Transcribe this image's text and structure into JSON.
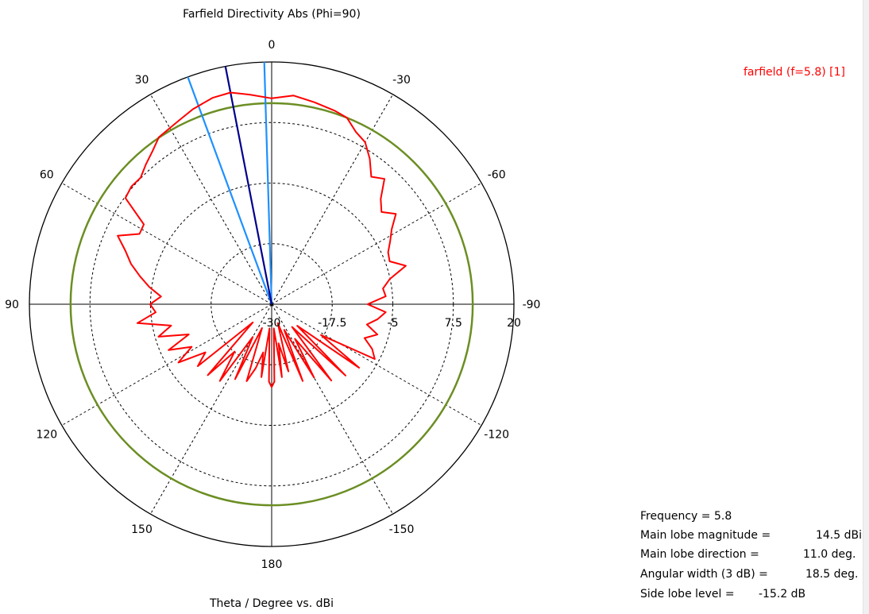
{
  "chart_data": {
    "type": "polar",
    "title": "Farfield Directivity Abs (Phi=90)",
    "xlabel": "Theta / Degree vs. dBi",
    "angle_ticks": [
      "0",
      "-30",
      "-60",
      "-90",
      "-120",
      "-150",
      "180",
      "150",
      "120",
      "90",
      "60",
      "30"
    ],
    "radial_ticks": [
      "-30",
      "-17.5",
      "-5",
      "7.5",
      "20"
    ],
    "radial_range_dbi": [
      -30,
      20
    ],
    "grid": true,
    "legend_position": "top-right",
    "series": [
      {
        "name": "farfield (f=5.8) [1]",
        "color": "#ff0000",
        "theta_deg": [
          0,
          6,
          11,
          16,
          22,
          26,
          30,
          34,
          38,
          42,
          46,
          50,
          54,
          58,
          62,
          66,
          70,
          74,
          78,
          82,
          86,
          90,
          94,
          98,
          102,
          106,
          110,
          114,
          118,
          122,
          126,
          130,
          134,
          138,
          142,
          146,
          150,
          154,
          158,
          162,
          166,
          170,
          172,
          175,
          178,
          180,
          182,
          185,
          188,
          190,
          194,
          198,
          202,
          206,
          210,
          214,
          218,
          222,
          226,
          230,
          234,
          238,
          242,
          246,
          250,
          254,
          258,
          262,
          266,
          270,
          274,
          278,
          282,
          286,
          290,
          294,
          298,
          302,
          306,
          310,
          314,
          318,
          322,
          326,
          330,
          334,
          338,
          342,
          348,
          354,
          360
        ],
        "dbi": [
          12.5,
          13.5,
          14.5,
          14.3,
          13.4,
          12.6,
          12.0,
          11.6,
          10.0,
          8.8,
          7.6,
          7.8,
          7.3,
          1.1,
          0.9,
          4.8,
          2.1,
          0.2,
          -2.2,
          -4.5,
          -7.1,
          -4.9,
          -6.0,
          -2.0,
          -8.8,
          -5.7,
          -11.8,
          -6.7,
          -11.3,
          -7.3,
          -13.1,
          -10.1,
          -24.6,
          -10.3,
          -17.6,
          -10.9,
          -22.2,
          -12.8,
          -24.7,
          -13.3,
          -16.4,
          -19.9,
          -14.8,
          -25.0,
          -14.0,
          -12.9,
          -14.0,
          -25.0,
          -14.8,
          -21.8,
          -15.7,
          -25.9,
          -12.9,
          -24.1,
          -12.5,
          -21.4,
          -10.0,
          -23.7,
          -8.8,
          -23.1,
          -7.7,
          -18.0,
          -5.9,
          -7.3,
          -9.6,
          -7.3,
          -9.9,
          -7.9,
          -6.4,
          -10.2,
          -6.4,
          -6.8,
          -5.1,
          -1.2,
          -4.1,
          -3.7,
          -2.3,
          -0.8,
          1.7,
          -0.4,
          1.3,
          4.8,
          3.4,
          6.2,
          8.6,
          9.6,
          11.5,
          12.0,
          12.6,
          13.3,
          12.5
        ]
      },
      {
        "name": "Main lobe",
        "color": "#00008b",
        "theta_deg": [
          11.0
        ]
      },
      {
        "name": "3 dB beamwidth",
        "color": "#1e90ff",
        "theta_deg": [
          1.75,
          20.25
        ]
      },
      {
        "name": "Main lobe - 3 dB",
        "color": "#6b8e23",
        "dbi": [
          11.5
        ]
      }
    ]
  },
  "legend": {
    "label": "farfield (f=5.8) [1]"
  },
  "results": {
    "frequency": "Frequency = 5.8",
    "main_lobe_magnitude_label": "Main lobe magnitude =",
    "main_lobe_magnitude_value": "14.5 dBi",
    "main_lobe_direction_label": "Main lobe direction =",
    "main_lobe_direction_value": "11.0 deg.",
    "angular_width_label": "Angular width (3 dB) =",
    "angular_width_value": "18.5 deg.",
    "side_lobe_label": "Side lobe level =",
    "side_lobe_value": "-15.2 dB"
  }
}
